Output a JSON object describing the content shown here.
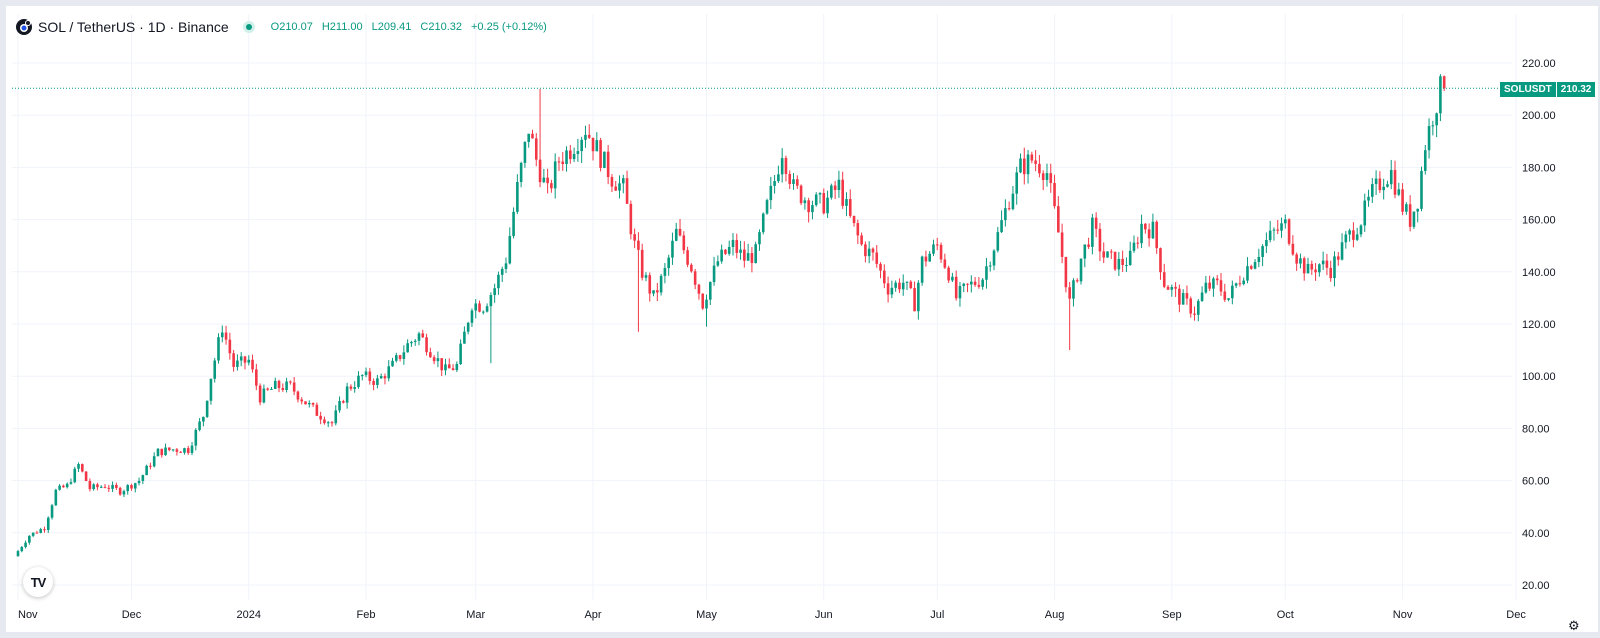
{
  "legend": {
    "title": "SOL / TetherUS · 1D · Binance",
    "open": "O210.07",
    "high": "H211.00",
    "low": "L209.41",
    "close": "C210.32",
    "change": "+0.25 (+0.12%)"
  },
  "price_tag": {
    "symbol": "SOLUSDT",
    "value": "210.32"
  },
  "logo_text": "TV",
  "colors": {
    "up": "#089981",
    "down": "#f23645",
    "grid": "#f0f3fa",
    "axis_text": "#131722"
  },
  "chart_data": {
    "type": "candlestick",
    "title": "SOL / TetherUS · 1D · Binance",
    "y_axis_side": "right",
    "ylim": [
      14,
      226
    ],
    "y_ticks": [
      "20.00",
      "40.00",
      "60.00",
      "80.00",
      "100.00",
      "120.00",
      "140.00",
      "160.00",
      "180.00",
      "200.00",
      "220.00"
    ],
    "x_ticks": [
      "Nov",
      "Dec",
      "2024",
      "Feb",
      "Mar",
      "Apr",
      "May",
      "Jun",
      "Jul",
      "Aug",
      "Sep",
      "Oct",
      "Nov",
      "Dec"
    ],
    "x_tick_dates": [
      "2023-11-01",
      "2023-12-01",
      "2024-01-01",
      "2024-02-01",
      "2024-03-01",
      "2024-04-01",
      "2024-05-01",
      "2024-06-01",
      "2024-07-01",
      "2024-08-01",
      "2024-09-01",
      "2024-10-01",
      "2024-11-01",
      "2024-12-01"
    ],
    "grid": true,
    "last_price": 210.32,
    "start_date": "2023-11-01",
    "end_date": "2024-11-12",
    "close_path": [
      [
        "2023-11-01",
        33
      ],
      [
        "2023-11-04",
        39
      ],
      [
        "2023-11-08",
        42
      ],
      [
        "2023-11-11",
        56
      ],
      [
        "2023-11-14",
        58
      ],
      [
        "2023-11-17",
        66
      ],
      [
        "2023-11-20",
        57
      ],
      [
        "2023-11-24",
        58
      ],
      [
        "2023-11-28",
        56
      ],
      [
        "2023-12-03",
        60
      ],
      [
        "2023-12-08",
        71
      ],
      [
        "2023-12-12",
        72
      ],
      [
        "2023-12-16",
        72
      ],
      [
        "2023-12-20",
        85
      ],
      [
        "2023-12-22",
        100
      ],
      [
        "2023-12-25",
        119
      ],
      [
        "2023-12-28",
        104
      ],
      [
        "2024-01-01",
        106
      ],
      [
        "2024-01-04",
        92
      ],
      [
        "2024-01-08",
        96
      ],
      [
        "2024-01-12",
        96
      ],
      [
        "2024-01-16",
        90
      ],
      [
        "2024-01-19",
        86
      ],
      [
        "2024-01-23",
        82
      ],
      [
        "2024-01-27",
        95
      ],
      [
        "2024-01-31",
        100
      ],
      [
        "2024-02-04",
        98
      ],
      [
        "2024-02-08",
        104
      ],
      [
        "2024-02-12",
        112
      ],
      [
        "2024-02-15",
        116
      ],
      [
        "2024-02-19",
        108
      ],
      [
        "2024-02-22",
        102
      ],
      [
        "2024-02-25",
        104
      ],
      [
        "2024-02-29",
        128
      ],
      [
        "2024-03-03",
        127
      ],
      [
        "2024-03-06",
        134
      ],
      [
        "2024-03-09",
        145
      ],
      [
        "2024-03-12",
        172
      ],
      [
        "2024-03-15",
        195
      ],
      [
        "2024-03-17",
        183
      ],
      [
        "2024-03-20",
        170
      ],
      [
        "2024-03-23",
        183
      ],
      [
        "2024-03-26",
        187
      ],
      [
        "2024-03-30",
        195
      ],
      [
        "2024-04-02",
        187
      ],
      [
        "2024-04-06",
        176
      ],
      [
        "2024-04-09",
        172
      ],
      [
        "2024-04-12",
        150
      ],
      [
        "2024-04-14",
        140
      ],
      [
        "2024-04-17",
        130
      ],
      [
        "2024-04-20",
        140
      ],
      [
        "2024-04-23",
        155
      ],
      [
        "2024-04-27",
        142
      ],
      [
        "2024-04-30",
        128
      ],
      [
        "2024-05-04",
        144
      ],
      [
        "2024-05-08",
        150
      ],
      [
        "2024-05-11",
        145
      ],
      [
        "2024-05-14",
        147
      ],
      [
        "2024-05-17",
        165
      ],
      [
        "2024-05-19",
        175
      ],
      [
        "2024-05-21",
        187
      ],
      [
        "2024-05-24",
        172
      ],
      [
        "2024-05-28",
        167
      ],
      [
        "2024-06-01",
        166
      ],
      [
        "2024-06-05",
        173
      ],
      [
        "2024-06-08",
        160
      ],
      [
        "2024-06-11",
        150
      ],
      [
        "2024-06-14",
        146
      ],
      [
        "2024-06-18",
        134
      ],
      [
        "2024-06-22",
        136
      ],
      [
        "2024-06-25",
        128
      ],
      [
        "2024-06-27",
        144
      ],
      [
        "2024-07-01",
        150
      ],
      [
        "2024-07-04",
        140
      ],
      [
        "2024-07-06",
        130
      ],
      [
        "2024-07-09",
        134
      ],
      [
        "2024-07-13",
        138
      ],
      [
        "2024-07-17",
        154
      ],
      [
        "2024-07-20",
        168
      ],
      [
        "2024-07-23",
        180
      ],
      [
        "2024-07-26",
        183
      ],
      [
        "2024-07-28",
        181
      ],
      [
        "2024-07-30",
        178
      ],
      [
        "2024-08-02",
        155
      ],
      [
        "2024-08-05",
        128
      ],
      [
        "2024-08-08",
        145
      ],
      [
        "2024-08-11",
        157
      ],
      [
        "2024-08-14",
        146
      ],
      [
        "2024-08-18",
        143
      ],
      [
        "2024-08-21",
        145
      ],
      [
        "2024-08-24",
        158
      ],
      [
        "2024-08-27",
        156
      ],
      [
        "2024-08-30",
        136
      ],
      [
        "2024-09-03",
        130
      ],
      [
        "2024-09-07",
        125
      ],
      [
        "2024-09-10",
        134
      ],
      [
        "2024-09-13",
        135
      ],
      [
        "2024-09-16",
        130
      ],
      [
        "2024-09-20",
        140
      ],
      [
        "2024-09-24",
        148
      ],
      [
        "2024-09-28",
        155
      ],
      [
        "2024-10-01",
        158
      ],
      [
        "2024-10-04",
        146
      ],
      [
        "2024-10-07",
        140
      ],
      [
        "2024-10-10",
        143
      ],
      [
        "2024-10-13",
        141
      ],
      [
        "2024-10-17",
        152
      ],
      [
        "2024-10-21",
        160
      ],
      [
        "2024-10-24",
        170
      ],
      [
        "2024-10-27",
        176
      ],
      [
        "2024-10-29",
        178
      ],
      [
        "2024-11-01",
        165
      ],
      [
        "2024-11-03",
        160
      ],
      [
        "2024-11-05",
        168
      ],
      [
        "2024-11-07",
        189
      ],
      [
        "2024-11-09",
        200
      ],
      [
        "2024-11-11",
        210
      ],
      [
        "2024-11-12",
        210.32
      ]
    ],
    "notable_wicks": [
      [
        "2024-03-05",
        105
      ],
      [
        "2024-04-13",
        117
      ],
      [
        "2024-05-01",
        119
      ],
      [
        "2024-08-05",
        110
      ],
      [
        "2024-03-18",
        210
      ],
      [
        "2024-11-11",
        215
      ]
    ]
  }
}
